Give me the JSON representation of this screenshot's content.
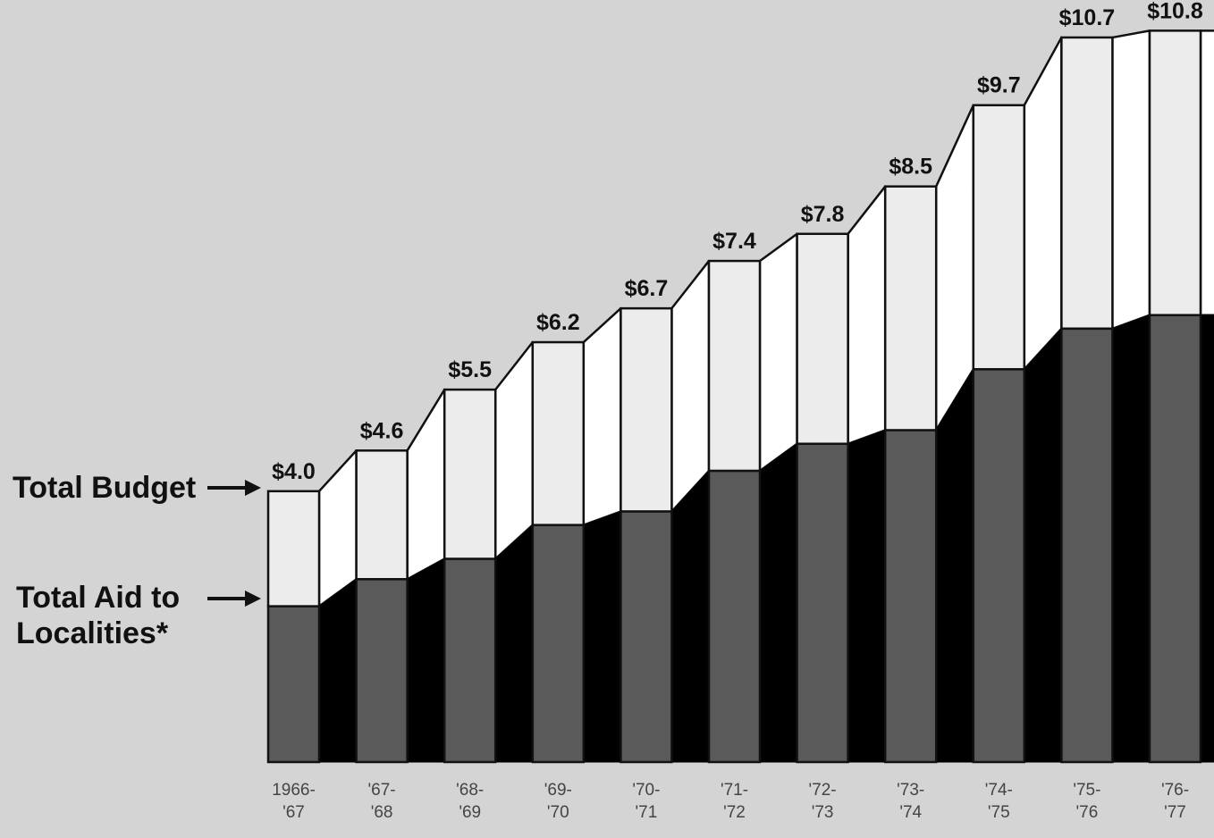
{
  "chart_data": {
    "type": "bar",
    "categories": [
      [
        "1966-",
        "'67"
      ],
      [
        "'67-",
        "'68"
      ],
      [
        "'68-",
        "'69"
      ],
      [
        "'69-",
        "'70"
      ],
      [
        "'70-",
        "'71"
      ],
      [
        "'71-",
        "'72"
      ],
      [
        "'72-",
        "'73"
      ],
      [
        "'73-",
        "'74"
      ],
      [
        "'74-",
        "'75"
      ],
      [
        "'75-",
        "'76"
      ],
      [
        "'76-",
        "'77"
      ]
    ],
    "series": [
      {
        "name": "Total Budget",
        "values": [
          4.0,
          4.6,
          5.5,
          6.2,
          6.7,
          7.4,
          7.8,
          8.5,
          9.7,
          10.7,
          10.8
        ],
        "data_labels": [
          "$4.0",
          "$4.6",
          "$5.5",
          "$6.2",
          "$6.7",
          "$7.4",
          "$7.8",
          "$8.5",
          "$9.7",
          "$10.7",
          "$10.8"
        ]
      },
      {
        "name": "Total Aid to Localities*",
        "name_lines": [
          "Total Aid to",
          "Localities*"
        ],
        "values": [
          2.3,
          2.7,
          3.0,
          3.5,
          3.7,
          4.3,
          4.7,
          4.9,
          5.8,
          6.4,
          6.6
        ]
      }
    ],
    "ylim": [
      0,
      11.5
    ],
    "grid": false,
    "legend": "left",
    "colors": {
      "budget": "#ececec",
      "budget_side": "#ffffff",
      "aid": "#5a5a5a",
      "aid_side": "#000000",
      "outline": "#111111",
      "background": "#d4d4d4"
    }
  }
}
